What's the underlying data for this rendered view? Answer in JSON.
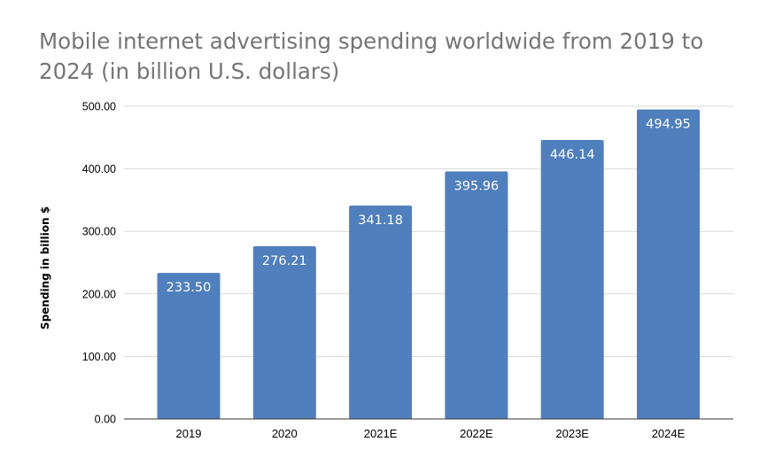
{
  "chart_data": {
    "type": "bar",
    "title": "Mobile internet advertising spending worldwide from 2019 to 2024 (in billion U.S. dollars)",
    "xlabel": "",
    "ylabel": "Spending in billion $",
    "categories": [
      "2019",
      "2020",
      "2021E",
      "2022E",
      "2023E",
      "2024E"
    ],
    "values": [
      233.5,
      276.21,
      341.18,
      395.96,
      446.14,
      494.95
    ],
    "value_labels": [
      "233.50",
      "276.21",
      "341.18",
      "395.96",
      "446.14",
      "494.95"
    ],
    "ylim": [
      0,
      500
    ],
    "yticks": [
      "0.00",
      "100.00",
      "200.00",
      "300.00",
      "400.00",
      "500.00"
    ],
    "grid": true,
    "legend": "none",
    "colors": {
      "bar": "#4f7fbd",
      "grid": "#d9d9d9",
      "axis": "#333333"
    }
  }
}
